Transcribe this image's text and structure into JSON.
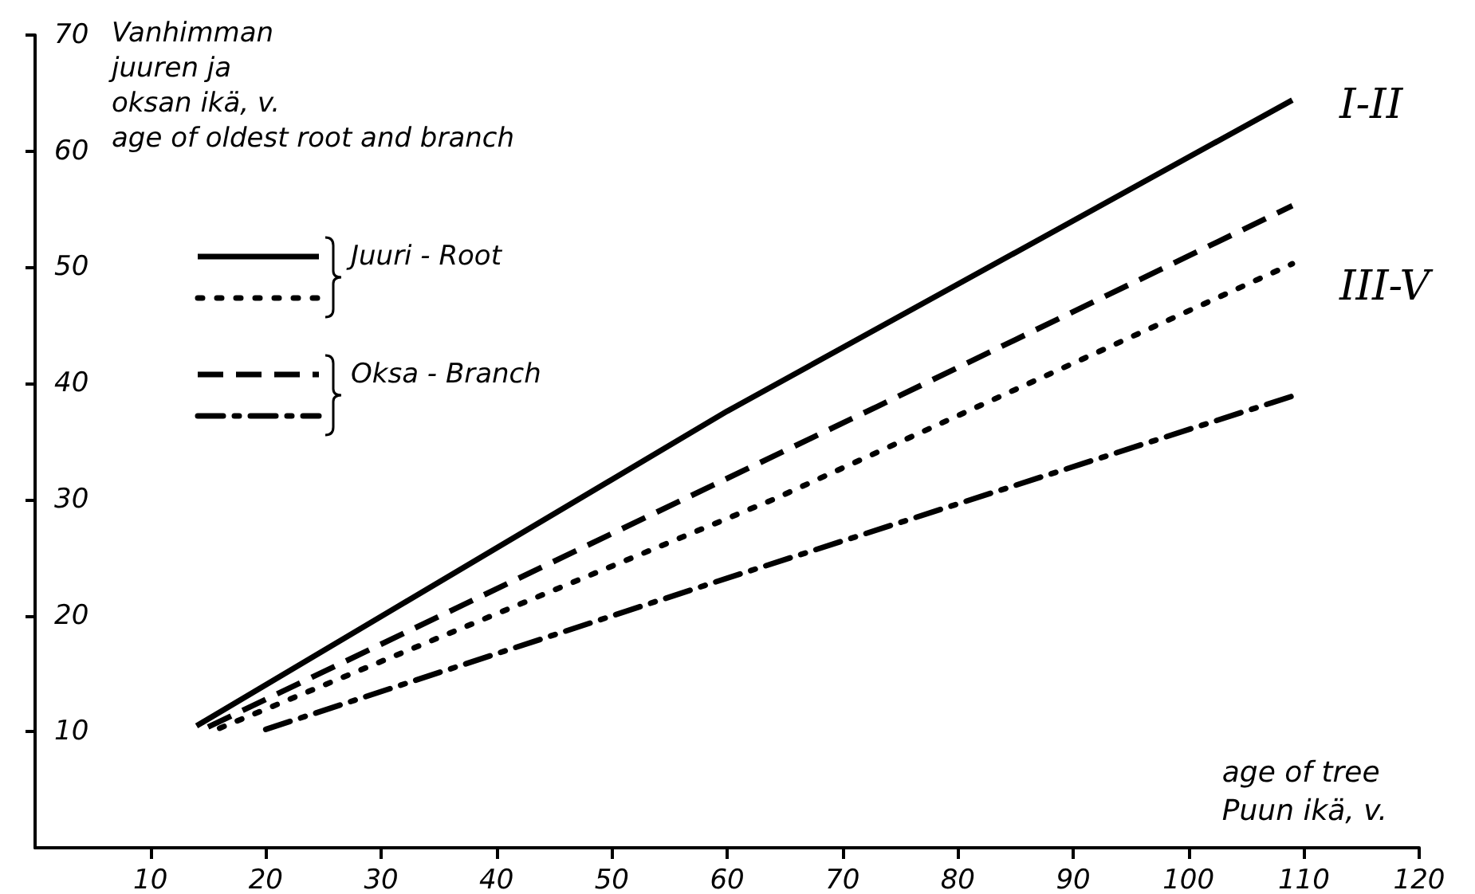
{
  "chart_data": {
    "type": "line",
    "ylabel": "Vanhimman\njuuren ja\noksan ikä, v.\nage of oldest root and branch",
    "xlabel": "age of tree\nPuun ikä, v.",
    "xlim": [
      0,
      120
    ],
    "xticks": [
      10,
      20,
      30,
      40,
      50,
      60,
      70,
      80,
      90,
      100,
      110,
      120
    ],
    "ylim": [
      0,
      70
    ],
    "yticks": [
      10,
      20,
      30,
      40,
      50,
      60,
      70
    ],
    "grid": false,
    "legend": "top left",
    "marker": "none",
    "series": [
      {
        "name": "Juuri - Root",
        "color": "#000000",
        "line_style": "solid",
        "x": [
          14,
          60,
          109
        ],
        "values": [
          10.5,
          37.6,
          64.4
        ]
      },
      {
        "color": "#000000",
        "line_style": "dotted",
        "x": [
          16,
          64,
          109
        ],
        "values": [
          10.3,
          30,
          50.3
        ]
      },
      {
        "name": "Oksa - Branch",
        "color": "#000000",
        "line_style": "dashed",
        "x": [
          15,
          73,
          109
        ],
        "values": [
          10.4,
          38,
          55.3
        ]
      },
      {
        "color": "#000000",
        "line_style": "dashdot",
        "x": [
          20,
          59,
          109
        ],
        "values": [
          10.2,
          22.9,
          38.9
        ]
      }
    ],
    "annotations": [
      "I-II",
      "III-V"
    ]
  }
}
